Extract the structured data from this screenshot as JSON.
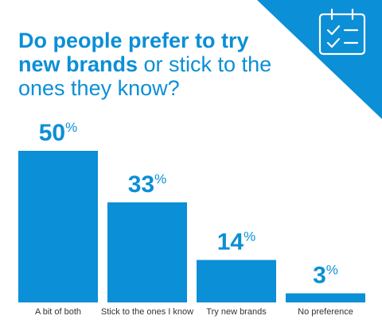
{
  "header": {
    "title_bold_1": "Do people prefer to try",
    "title_bold_2": "new brands",
    "title_rest_2": " or stick to the",
    "title_line_3": "ones they know?"
  },
  "icon": "calendar-checklist-icon",
  "colors": {
    "accent": "#0b8fd6",
    "label_text": "#333333",
    "background": "#ffffff"
  },
  "chart_data": {
    "type": "bar",
    "categories": [
      "A bit of both",
      "Stick to the ones I know",
      "Try new brands",
      "No preference"
    ],
    "values": [
      50,
      33,
      14,
      3
    ],
    "value_suffix": "%",
    "ylim": [
      0,
      50
    ],
    "grid": false
  }
}
